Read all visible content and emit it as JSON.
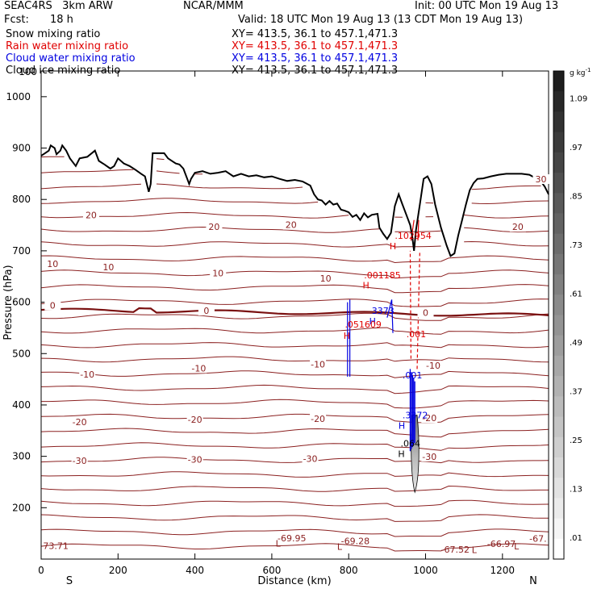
{
  "header": {
    "project": "SEAC4RS   3km ARW",
    "center": "NCAR/MMM",
    "init": "Init: 00 UTC Mon 19 Aug 13",
    "fcst_label": "Fcst:",
    "fcst_value": "18 h",
    "valid": "Valid: 18 UTC Mon 19 Aug 13 (13 CDT Mon 19 Aug 13)"
  },
  "fields": [
    {
      "name": "Snow mixing ratio",
      "xy": "XY= 413.5, 36.1 to 457.1,471.3",
      "color": "#000000"
    },
    {
      "name": "Rain water mixing ratio",
      "xy": "XY= 413.5, 36.1 to 457.1,471.3",
      "color": "#e00000"
    },
    {
      "name": "Cloud water mixing ratio",
      "xy": "XY= 413.5, 36.1 to 457.1,471.3",
      "color": "#0000e0"
    },
    {
      "name": "Cloud ice mixing ratio",
      "xy": "XY= 413.5, 36.1 to 457.1,471.3",
      "color": "#000000"
    }
  ],
  "chart_data": {
    "type": "cross-section",
    "xlabel": "Distance (km)",
    "ylabel": "Pressure (hPa)",
    "xlim": [
      0,
      1320
    ],
    "ylim": [
      1050,
      100
    ],
    "x_ticks": [
      0,
      200,
      400,
      600,
      800,
      1000,
      1200
    ],
    "y_ticks": [
      200,
      300,
      400,
      500,
      600,
      700,
      800,
      900,
      1000
    ],
    "y_top_label": "100",
    "left_end_label": "S",
    "right_end_label": "N",
    "colorbar": {
      "unit": "g kg",
      "unit_exp": "-1",
      "labels": [
        ".01",
        ".13",
        ".25",
        ".37",
        ".49",
        ".61",
        ".73",
        ".85",
        ".97",
        "1.09"
      ]
    },
    "temperature_labels": [
      {
        "text": "-30",
        "x": 100,
        "p": 290
      },
      {
        "text": "-30",
        "x": 400,
        "p": 292
      },
      {
        "text": "-30",
        "x": 700,
        "p": 294
      },
      {
        "text": "-30",
        "x": 1010,
        "p": 298
      },
      {
        "text": "-20",
        "x": 100,
        "p": 365
      },
      {
        "text": "-20",
        "x": 400,
        "p": 370
      },
      {
        "text": "-20",
        "x": 720,
        "p": 372
      },
      {
        "text": "-20",
        "x": 1010,
        "p": 373
      },
      {
        "text": "-10",
        "x": 120,
        "p": 458
      },
      {
        "text": "-10",
        "x": 410,
        "p": 470
      },
      {
        "text": "-10",
        "x": 720,
        "p": 478
      },
      {
        "text": "-10",
        "x": 1020,
        "p": 475
      },
      {
        "text": "0",
        "x": 30,
        "p": 592
      },
      {
        "text": "0",
        "x": 430,
        "p": 582
      },
      {
        "text": "0",
        "x": 1000,
        "p": 578
      },
      {
        "text": "10",
        "x": 30,
        "p": 673
      },
      {
        "text": "10",
        "x": 175,
        "p": 667
      },
      {
        "text": "10",
        "x": 460,
        "p": 655
      },
      {
        "text": "10",
        "x": 740,
        "p": 645
      },
      {
        "text": "20",
        "x": 130,
        "p": 768
      },
      {
        "text": "20",
        "x": 450,
        "p": 745
      },
      {
        "text": "20",
        "x": 650,
        "p": 749
      },
      {
        "text": "20",
        "x": 1240,
        "p": 745
      },
      {
        "text": "30",
        "x": 1300,
        "p": 838
      }
    ],
    "top_values": [
      {
        "text": "73.71",
        "x": 5,
        "p": 126
      },
      {
        "text": "-69.95",
        "x": 615,
        "p": 141
      },
      {
        "text": "-69.28",
        "x": 780,
        "p": 135
      },
      {
        "text": "-67.52",
        "x": 1040,
        "p": 119
      },
      {
        "text": "-66.97",
        "x": 1160,
        "p": 130
      },
      {
        "text": "-67.",
        "x": 1270,
        "p": 140
      }
    ],
    "low_markers": [
      {
        "text": "L",
        "x": 610,
        "p": 131
      },
      {
        "text": "L",
        "x": 770,
        "p": 124
      },
      {
        "text": "L",
        "x": 1120,
        "p": 118
      },
      {
        "text": "L",
        "x": 1230,
        "p": 125
      }
    ],
    "extrema_labels": [
      {
        "text": ".051609",
        "x": 790,
        "p": 557,
        "color": "#e00000"
      },
      {
        "text": ".001185",
        "x": 840,
        "p": 653,
        "color": "#e00000"
      },
      {
        "text": ".102954",
        "x": 920,
        "p": 730,
        "color": "#e00000"
      },
      {
        "text": ".001",
        "x": 950,
        "p": 538,
        "color": "#e00000"
      },
      {
        "text": "3373",
        "x": 860,
        "p": 584,
        "color": "#0000e0"
      },
      {
        "text": ".3372",
        "x": 940,
        "p": 380,
        "color": "#0000e0"
      },
      {
        "text": ".001",
        "x": 940,
        "p": 458,
        "color": "#0000e0"
      },
      {
        "text": ".064",
        "x": 935,
        "p": 325,
        "color": "#000000"
      }
    ],
    "high_markers": [
      {
        "text": "H",
        "x": 795,
        "p": 535,
        "color": "#e00000"
      },
      {
        "text": "H",
        "x": 845,
        "p": 633,
        "color": "#e00000"
      },
      {
        "text": "H",
        "x": 915,
        "p": 709,
        "color": "#e00000"
      },
      {
        "text": "H",
        "x": 862,
        "p": 563,
        "color": "#0000e0"
      },
      {
        "text": "H",
        "x": 938,
        "p": 360,
        "color": "#0000e0"
      },
      {
        "text": "H",
        "x": 937,
        "p": 305,
        "color": "#000000"
      }
    ],
    "terrain": [
      [
        0,
        885
      ],
      [
        10,
        890
      ],
      [
        20,
        895
      ],
      [
        25,
        905
      ],
      [
        35,
        900
      ],
      [
        40,
        888
      ],
      [
        50,
        895
      ],
      [
        55,
        905
      ],
      [
        65,
        895
      ],
      [
        75,
        880
      ],
      [
        90,
        865
      ],
      [
        100,
        880
      ],
      [
        120,
        883
      ],
      [
        140,
        895
      ],
      [
        150,
        875
      ],
      [
        165,
        868
      ],
      [
        180,
        860
      ],
      [
        190,
        865
      ],
      [
        200,
        880
      ],
      [
        215,
        870
      ],
      [
        230,
        865
      ],
      [
        245,
        858
      ],
      [
        260,
        850
      ],
      [
        270,
        845
      ],
      [
        280,
        815
      ],
      [
        285,
        830
      ],
      [
        290,
        890
      ],
      [
        300,
        890
      ],
      [
        320,
        890
      ],
      [
        330,
        880
      ],
      [
        340,
        875
      ],
      [
        350,
        870
      ],
      [
        360,
        868
      ],
      [
        370,
        860
      ],
      [
        380,
        840
      ],
      [
        385,
        830
      ],
      [
        390,
        840
      ],
      [
        400,
        852
      ],
      [
        420,
        855
      ],
      [
        440,
        850
      ],
      [
        460,
        852
      ],
      [
        480,
        855
      ],
      [
        500,
        845
      ],
      [
        520,
        850
      ],
      [
        540,
        845
      ],
      [
        560,
        847
      ],
      [
        580,
        843
      ],
      [
        600,
        845
      ],
      [
        620,
        840
      ],
      [
        640,
        836
      ],
      [
        660,
        838
      ],
      [
        680,
        835
      ],
      [
        700,
        827
      ],
      [
        710,
        810
      ],
      [
        720,
        800
      ],
      [
        730,
        798
      ],
      [
        740,
        790
      ],
      [
        750,
        797
      ],
      [
        760,
        790
      ],
      [
        770,
        792
      ],
      [
        780,
        780
      ],
      [
        790,
        778
      ],
      [
        800,
        775
      ],
      [
        810,
        766
      ],
      [
        820,
        770
      ],
      [
        830,
        760
      ],
      [
        840,
        773
      ],
      [
        850,
        765
      ],
      [
        860,
        770
      ],
      [
        875,
        772
      ],
      [
        880,
        745
      ],
      [
        890,
        733
      ],
      [
        900,
        723
      ],
      [
        910,
        735
      ],
      [
        920,
        787
      ],
      [
        930,
        810
      ],
      [
        940,
        790
      ],
      [
        950,
        770
      ],
      [
        960,
        750
      ],
      [
        965,
        730
      ],
      [
        970,
        700
      ],
      [
        975,
        740
      ],
      [
        985,
        790
      ],
      [
        995,
        840
      ],
      [
        1005,
        845
      ],
      [
        1015,
        830
      ],
      [
        1025,
        790
      ],
      [
        1040,
        745
      ],
      [
        1055,
        710
      ],
      [
        1065,
        690
      ],
      [
        1075,
        695
      ],
      [
        1085,
        730
      ],
      [
        1095,
        760
      ],
      [
        1105,
        790
      ],
      [
        1115,
        818
      ],
      [
        1125,
        832
      ],
      [
        1135,
        840
      ],
      [
        1150,
        841
      ],
      [
        1170,
        845
      ],
      [
        1190,
        848
      ],
      [
        1210,
        850
      ],
      [
        1230,
        850
      ],
      [
        1250,
        850
      ],
      [
        1270,
        848
      ],
      [
        1285,
        842
      ],
      [
        1300,
        835
      ],
      [
        1310,
        825
      ],
      [
        1320,
        810
      ]
    ]
  }
}
